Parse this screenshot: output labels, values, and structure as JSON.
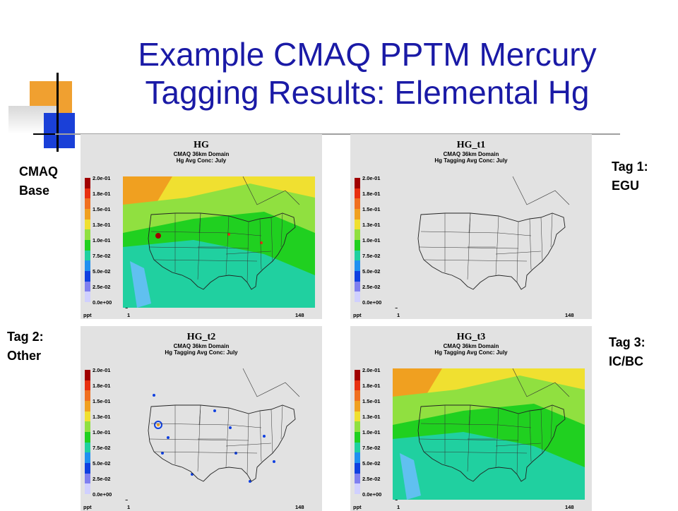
{
  "slide": {
    "title": "Example CMAQ PPTM Mercury Tagging Results: Elemental Hg",
    "labels": {
      "base": "CMAQ\nBase",
      "tag1": "Tag 1:\nEGU",
      "tag2": "Tag 2:\nOther",
      "tag3": "Tag 3:\nIC/BC"
    },
    "accent_color": "#1a1aa6"
  },
  "panels": [
    {
      "name": "HG",
      "line1": "CMAQ 36km Domain",
      "line2": "Hg Avg Conc: July",
      "variant": "base"
    },
    {
      "name": "HG_t1",
      "line1": "CMAQ 36km Domain",
      "line2": "Hg Tagging Avg Conc: July",
      "variant": "egu"
    },
    {
      "name": "HG_t2",
      "line1": "CMAQ 36km Domain",
      "line2": "Hg Tagging Avg Conc: July",
      "variant": "other"
    },
    {
      "name": "HG_t3",
      "line1": "CMAQ 36km Domain",
      "line2": "Hg Tagging Avg Conc: July",
      "variant": "icbc"
    }
  ],
  "legend": {
    "labels": [
      "2.0e-01",
      "1.8e-01",
      "1.5e-01",
      "1.3e-01",
      "1.0e-01",
      "7.5e-02",
      "5.0e-02",
      "2.5e-02",
      "0.0e+00"
    ],
    "colors": [
      "#a00000",
      "#e83010",
      "#f07020",
      "#f0a020",
      "#f0e030",
      "#90e040",
      "#20d020",
      "#20d0a0",
      "#2090f0",
      "#1040e0",
      "#8080f0",
      "#d0d0ff"
    ],
    "unit": "ppt"
  },
  "axes": {
    "x_min": "1",
    "x_max": "148",
    "y_max": "112",
    "y_min": "1"
  }
}
